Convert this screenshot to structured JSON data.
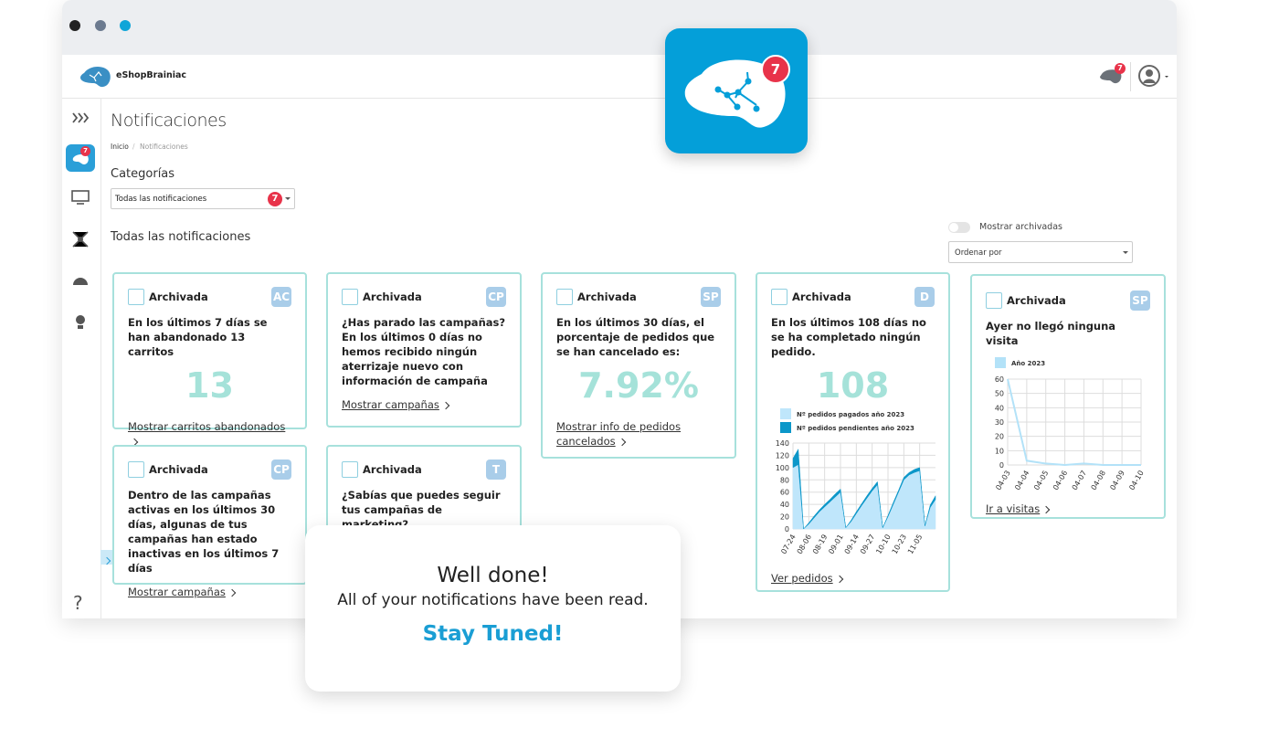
{
  "header": {
    "brand": "eShopBrainiac",
    "badge": 7
  },
  "app_icon": {
    "badge": 7
  },
  "sidebar": {
    "badge": 7,
    "help": "?"
  },
  "page": {
    "title": "Notificaciones",
    "breadcrumb": [
      "Inicio",
      "Notificaciones"
    ],
    "categories_label": "Categorías",
    "filter": "Todas las notificaciones",
    "filter_badge": 7,
    "section_title": "Todas las notificaciones",
    "toggle_label": "Mostrar archivadas",
    "sort": "Ordenar por"
  },
  "cards": [
    {
      "archived": "Archivada",
      "tag": "AC",
      "text": "En los últimos 7 días se han abandonado 13 carritos",
      "highlight": "13",
      "link": "Mostrar carritos abandonados"
    },
    {
      "archived": "Archivada",
      "tag": "CP",
      "text": "¿Has parado las campañas? En los últimos 0 días no hemos recibido ningún aterrizaje nuevo con información de campaña",
      "link": "Mostrar campañas"
    },
    {
      "archived": "Archivada",
      "tag": "SP",
      "text": "En los últimos 30 días, el porcentaje de pedidos que se han cancelado es:",
      "highlight": "7.92%",
      "link": "Mostrar info de pedidos cancelados"
    },
    {
      "archived": "Archivada",
      "tag": "D",
      "text": "En los últimos 108 días no se ha completado ningún pedido.",
      "highlight": "108",
      "chart": {
        "type": "area",
        "stacked": true,
        "grid": true,
        "categories": [
          "07-24",
          null,
          null,
          "08-06",
          null,
          null,
          "08-19",
          null,
          null,
          "09-01",
          null,
          null,
          "09-14",
          null,
          null,
          "09-27",
          null,
          null,
          "10-10",
          null,
          null,
          "10-23",
          null,
          null,
          "11-05",
          null,
          null,
          null
        ],
        "series": [
          {
            "name": "Nº pedidos pagados año 2023",
            "color": "#bfe6fb",
            "values": [
              100,
              105,
              0,
              8,
              18,
              28,
              36,
              44,
              52,
              60,
              2,
              12,
              25,
              38,
              50,
              62,
              72,
              2,
              20,
              40,
              60,
              80,
              88,
              92,
              95,
              5,
              35,
              48
            ]
          },
          {
            "name": "Nº pedidos pendientes año 2023",
            "color": "#0c97c9",
            "values": [
              15,
              25,
              0,
              2,
              3,
              3,
              4,
              4,
              5,
              5,
              0,
              2,
              3,
              3,
              4,
              4,
              5,
              0,
              2,
              3,
              3,
              4,
              4,
              5,
              5,
              0,
              4,
              6
            ]
          }
        ],
        "ylim": [
          0,
          140
        ],
        "yticks": [
          0,
          20,
          40,
          60,
          80,
          100,
          120,
          140
        ]
      },
      "link": "Ver pedidos"
    },
    {
      "archived": "Archivada",
      "tag": "SP",
      "text": "Ayer no llegó ninguna visita",
      "chart": {
        "type": "line",
        "grid": true,
        "categories": [
          "04-03",
          "04-04",
          "04-05",
          "04-06",
          "04-07",
          "04-08",
          "04-09",
          "04-10"
        ],
        "series": [
          {
            "name": "Año 2023",
            "color": "#b3e2f8",
            "values": [
              60,
              3,
              1,
              0,
              1,
              0,
              0,
              0
            ]
          }
        ],
        "ylim": [
          0,
          60
        ],
        "yticks": [
          0,
          10,
          20,
          30,
          40,
          50,
          60
        ]
      },
      "link": "Ir a visitas"
    },
    {
      "archived": "Archivada",
      "tag": "CP",
      "text": "Dentro de las campañas activas en los últimos 30 días, algunas de tus campañas han estado inactivas en los últimos 7 días",
      "link": "Mostrar campañas"
    },
    {
      "archived": "Archivada",
      "tag": "T",
      "text": "¿Sabías que puedes seguir tus campañas de marketing?"
    }
  ],
  "toast": {
    "title": "Well done!",
    "message": "All of your notifications have been read.",
    "cta": "Stay Tuned!"
  }
}
